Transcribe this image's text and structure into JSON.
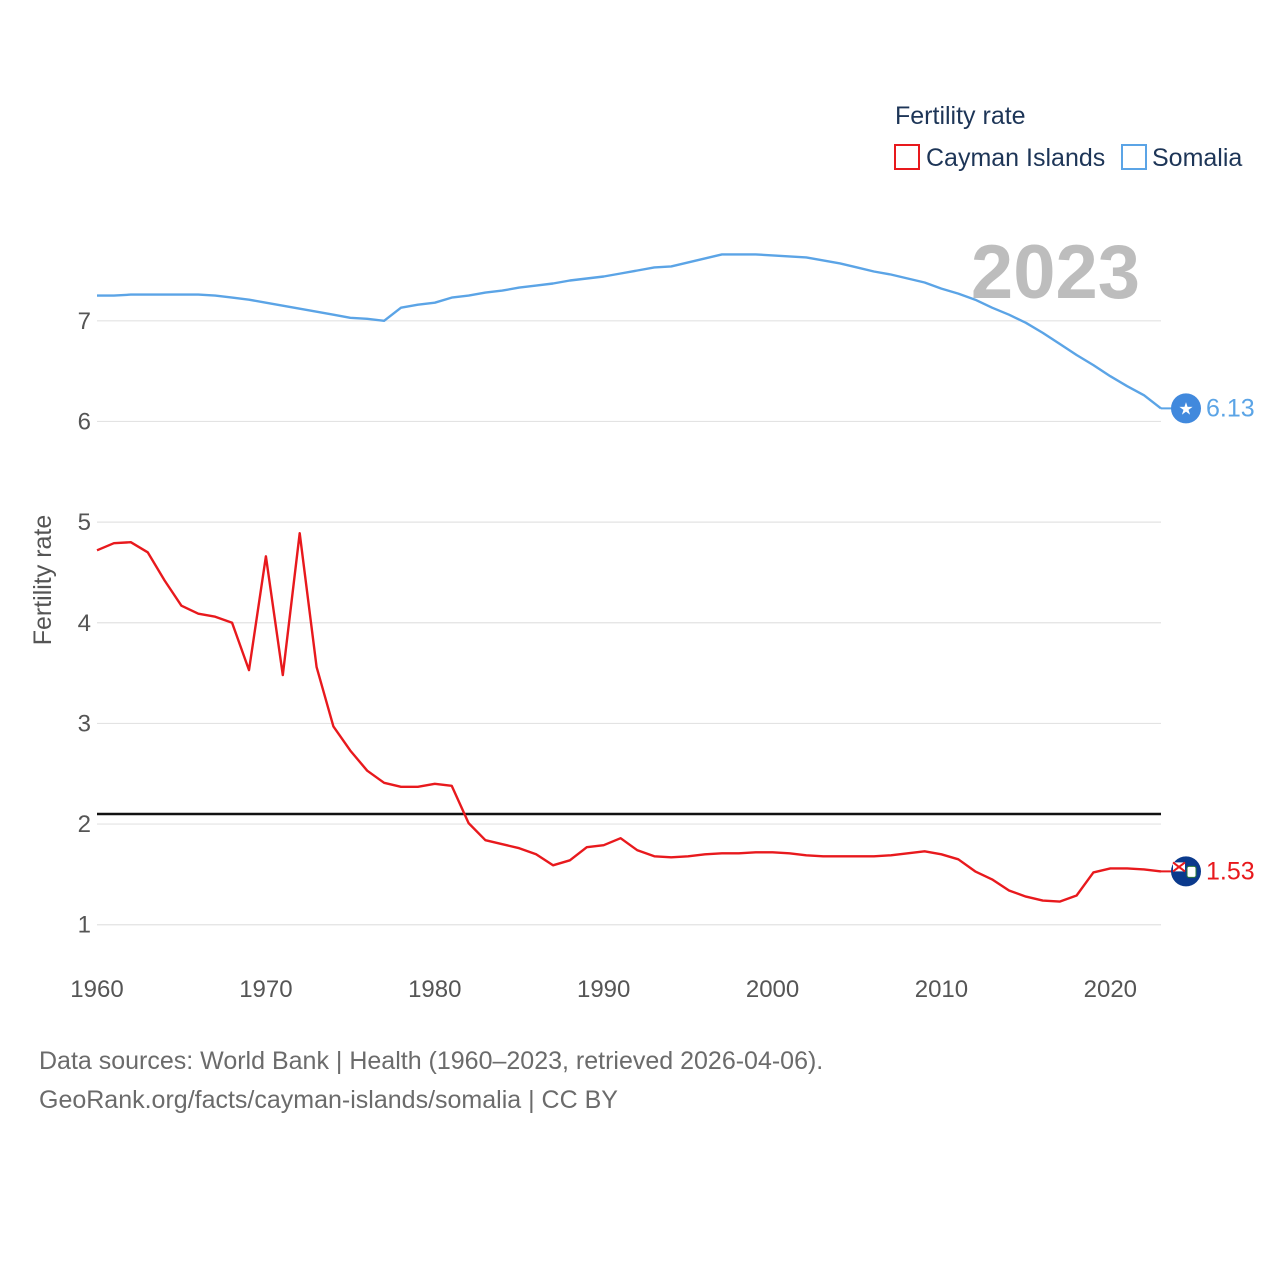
{
  "chart_data": {
    "type": "line",
    "legend_title": "Fertility rate",
    "ylabel": "Fertility rate",
    "xlabel": "",
    "year_label": "2023",
    "xlim": [
      1960,
      2023
    ],
    "ylim": [
      0.6,
      8.2
    ],
    "x_ticks": [
      1960,
      1970,
      1980,
      1990,
      2000,
      2010,
      2020
    ],
    "y_ticks": [
      1,
      2,
      3,
      4,
      5,
      6,
      7
    ],
    "reference_line": 2.1,
    "grid": true,
    "legend_position": "top-right",
    "x": [
      1960,
      1961,
      1962,
      1963,
      1964,
      1965,
      1966,
      1967,
      1968,
      1969,
      1970,
      1971,
      1972,
      1973,
      1974,
      1975,
      1976,
      1977,
      1978,
      1979,
      1980,
      1981,
      1982,
      1983,
      1984,
      1985,
      1986,
      1987,
      1988,
      1989,
      1990,
      1991,
      1992,
      1993,
      1994,
      1995,
      1996,
      1997,
      1998,
      1999,
      2000,
      2001,
      2002,
      2003,
      2004,
      2005,
      2006,
      2007,
      2008,
      2009,
      2010,
      2011,
      2012,
      2013,
      2014,
      2015,
      2016,
      2017,
      2018,
      2019,
      2020,
      2021,
      2022,
      2023
    ],
    "series": [
      {
        "name": "Cayman Islands",
        "color": "#e8191d",
        "end_label": "1.53",
        "flag_icon": "cayman-islands-flag-icon",
        "values": [
          4.72,
          4.79,
          4.8,
          4.7,
          4.42,
          4.17,
          4.09,
          4.06,
          4.0,
          3.53,
          4.66,
          3.48,
          4.89,
          3.56,
          2.97,
          2.73,
          2.53,
          2.41,
          2.37,
          2.37,
          2.4,
          2.38,
          2.01,
          1.84,
          1.8,
          1.76,
          1.7,
          1.59,
          1.64,
          1.77,
          1.79,
          1.86,
          1.74,
          1.68,
          1.67,
          1.68,
          1.7,
          1.71,
          1.71,
          1.72,
          1.72,
          1.71,
          1.69,
          1.68,
          1.68,
          1.68,
          1.68,
          1.69,
          1.71,
          1.73,
          1.7,
          1.65,
          1.53,
          1.45,
          1.34,
          1.28,
          1.24,
          1.23,
          1.29,
          1.52,
          1.56,
          1.56,
          1.55,
          1.53
        ]
      },
      {
        "name": "Somalia",
        "color": "#5ba4e6",
        "end_label": "6.13",
        "flag_icon": "somalia-flag-icon",
        "values": [
          7.25,
          7.25,
          7.26,
          7.26,
          7.26,
          7.26,
          7.26,
          7.25,
          7.23,
          7.21,
          7.18,
          7.15,
          7.12,
          7.09,
          7.06,
          7.03,
          7.02,
          7.0,
          7.13,
          7.16,
          7.18,
          7.23,
          7.25,
          7.28,
          7.3,
          7.33,
          7.35,
          7.37,
          7.4,
          7.42,
          7.44,
          7.47,
          7.5,
          7.53,
          7.54,
          7.58,
          7.62,
          7.66,
          7.66,
          7.66,
          7.65,
          7.64,
          7.63,
          7.6,
          7.57,
          7.53,
          7.49,
          7.46,
          7.42,
          7.38,
          7.32,
          7.27,
          7.21,
          7.13,
          7.06,
          6.98,
          6.88,
          6.77,
          6.66,
          6.56,
          6.45,
          6.35,
          6.26,
          6.13
        ]
      }
    ]
  },
  "footer": {
    "line1": "Data sources: World Bank | Health (1960–2023, retrieved 2026-04-06).",
    "line2": "GeoRank.org/facts/cayman-islands/somalia | CC BY"
  }
}
